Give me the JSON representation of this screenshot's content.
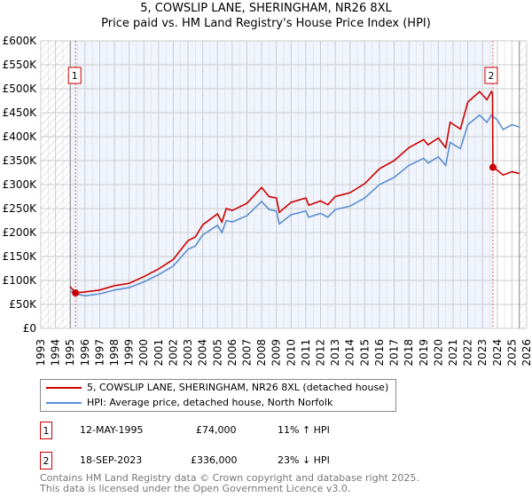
{
  "chart_data": {
    "type": "line",
    "title": "5, COWSLIP LANE, SHERINGHAM, NR26 8XL",
    "subtitle": "Price paid vs. HM Land Registry's House Price Index (HPI)",
    "xlim": [
      1993,
      2026
    ],
    "ylim": [
      0,
      600000
    ],
    "x_ticks": [
      "1993",
      "1994",
      "1995",
      "1996",
      "1997",
      "1998",
      "1999",
      "2000",
      "2001",
      "2002",
      "2003",
      "2004",
      "2005",
      "2006",
      "2007",
      "2008",
      "2009",
      "2010",
      "2011",
      "2012",
      "2013",
      "2014",
      "2015",
      "2016",
      "2017",
      "2018",
      "2019",
      "2020",
      "2021",
      "2022",
      "2023",
      "2024",
      "2025",
      "2026"
    ],
    "y_ticks": [
      "£0",
      "£50K",
      "£100K",
      "£150K",
      "£200K",
      "£250K",
      "£300K",
      "£350K",
      "£400K",
      "£450K",
      "£500K",
      "£550K",
      "£600K"
    ],
    "grid": true,
    "series": [
      {
        "name": "5, COWSLIP LANE, SHERINGHAM, NR26 8XL (detached house)",
        "color": "#cc0000",
        "x": [
          1995.0,
          1995.36,
          1996,
          1997,
          1998,
          1999,
          2000,
          2001,
          2002,
          2003,
          2003.5,
          2004,
          2005,
          2005.3,
          2005.6,
          2006,
          2007,
          2008,
          2008.5,
          2009,
          2009.2,
          2010,
          2011,
          2011.2,
          2012,
          2012.5,
          2013,
          2014,
          2015,
          2016,
          2017,
          2018,
          2019,
          2019.3,
          2020,
          2020.5,
          2020.8,
          2021.5,
          2022,
          2022.8,
          2023.3,
          2023.6,
          2023.68,
          2023.71,
          2024,
          2024.4,
          2025,
          2025.5
        ],
        "y": [
          87000,
          74000,
          76000,
          80000,
          89000,
          94000,
          108000,
          124000,
          144000,
          183000,
          191000,
          216000,
          239000,
          222000,
          250000,
          246000,
          261000,
          294000,
          275000,
          272000,
          242000,
          263000,
          272000,
          257000,
          266000,
          258000,
          275000,
          283000,
          302000,
          333000,
          350000,
          377000,
          394000,
          383000,
          397000,
          377000,
          430000,
          416000,
          472000,
          494000,
          477000,
          494000,
          490000,
          336000,
          330000,
          320000,
          327000,
          323000
        ]
      },
      {
        "name": "HPI: Average price, detached house, North Norfolk",
        "color": "#5b8fd0",
        "x": [
          1995.0,
          1995.36,
          1996,
          1997,
          1998,
          1999,
          2000,
          2001,
          2002,
          2003,
          2003.5,
          2004,
          2005,
          2005.3,
          2005.6,
          2006,
          2007,
          2008,
          2008.5,
          2009,
          2009.2,
          2010,
          2011,
          2011.2,
          2012,
          2012.5,
          2013,
          2014,
          2015,
          2016,
          2017,
          2018,
          2019,
          2019.3,
          2020,
          2020.5,
          2020.8,
          2021.5,
          2022,
          2022.8,
          2023.3,
          2023.6,
          2024,
          2024.4,
          2025,
          2025.5
        ],
        "y": [
          78000,
          72000,
          68000,
          72000,
          80000,
          85000,
          97000,
          112000,
          130000,
          165000,
          172000,
          195000,
          215000,
          200000,
          225000,
          222000,
          235000,
          265000,
          248000,
          245000,
          218000,
          237000,
          245000,
          232000,
          240000,
          232000,
          248000,
          255000,
          272000,
          300000,
          315000,
          340000,
          355000,
          345000,
          358000,
          340000,
          388000,
          375000,
          425000,
          445000,
          430000,
          445000,
          435000,
          415000,
          425000,
          420000
        ]
      }
    ],
    "sales": [
      {
        "label": "1",
        "x": 1995.36,
        "y": 74000
      },
      {
        "label": "2",
        "x": 2023.71,
        "y": 336000
      }
    ]
  },
  "legend": {
    "property": "5, COWSLIP LANE, SHERINGHAM, NR26 8XL (detached house)",
    "hpi": "HPI: Average price, detached house, North Norfolk"
  },
  "transactions": [
    {
      "num": "1",
      "date": "12-MAY-1995",
      "price": "£74,000",
      "hpi": "11% ↑ HPI"
    },
    {
      "num": "2",
      "date": "18-SEP-2023",
      "price": "£336,000",
      "hpi": "23% ↓ HPI"
    }
  ],
  "footer": [
    "Contains HM Land Registry data © Crown copyright and database right 2025.",
    "This data is licensed under the Open Government Licence v3.0."
  ]
}
